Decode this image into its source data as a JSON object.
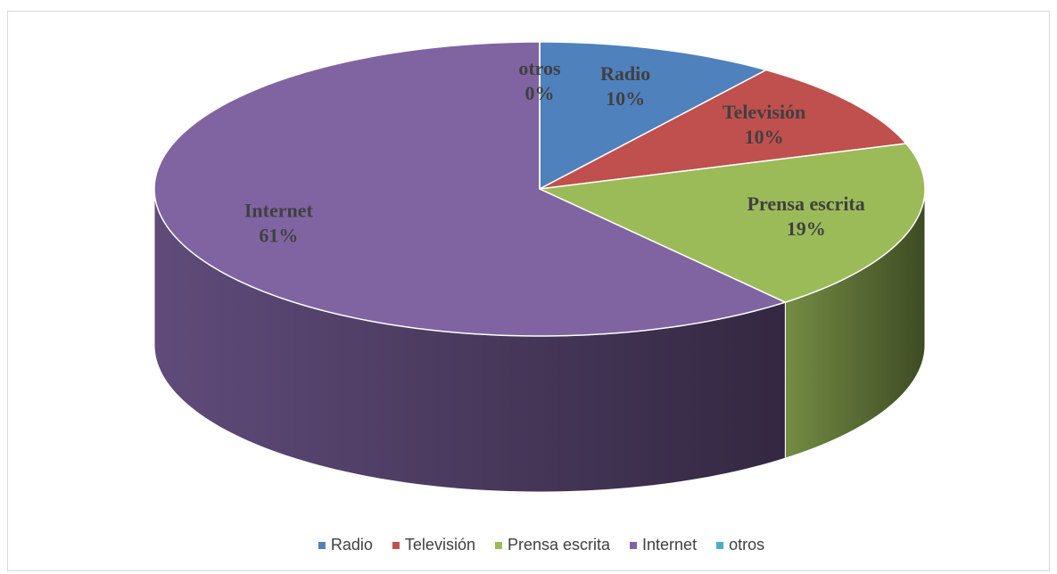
{
  "chart_data": {
    "type": "pie",
    "categories": [
      "Radio",
      "Televisión",
      "Prensa escrita",
      "Internet",
      "otros"
    ],
    "values": [
      10,
      10,
      19,
      61,
      0
    ],
    "value_labels": [
      "10%",
      "10%",
      "19%",
      "61%",
      "0%"
    ],
    "colors": [
      "#4f81bd",
      "#c0504d",
      "#9bbb59",
      "#8064a2",
      "#4bacc6"
    ],
    "legend": "bottom"
  }
}
